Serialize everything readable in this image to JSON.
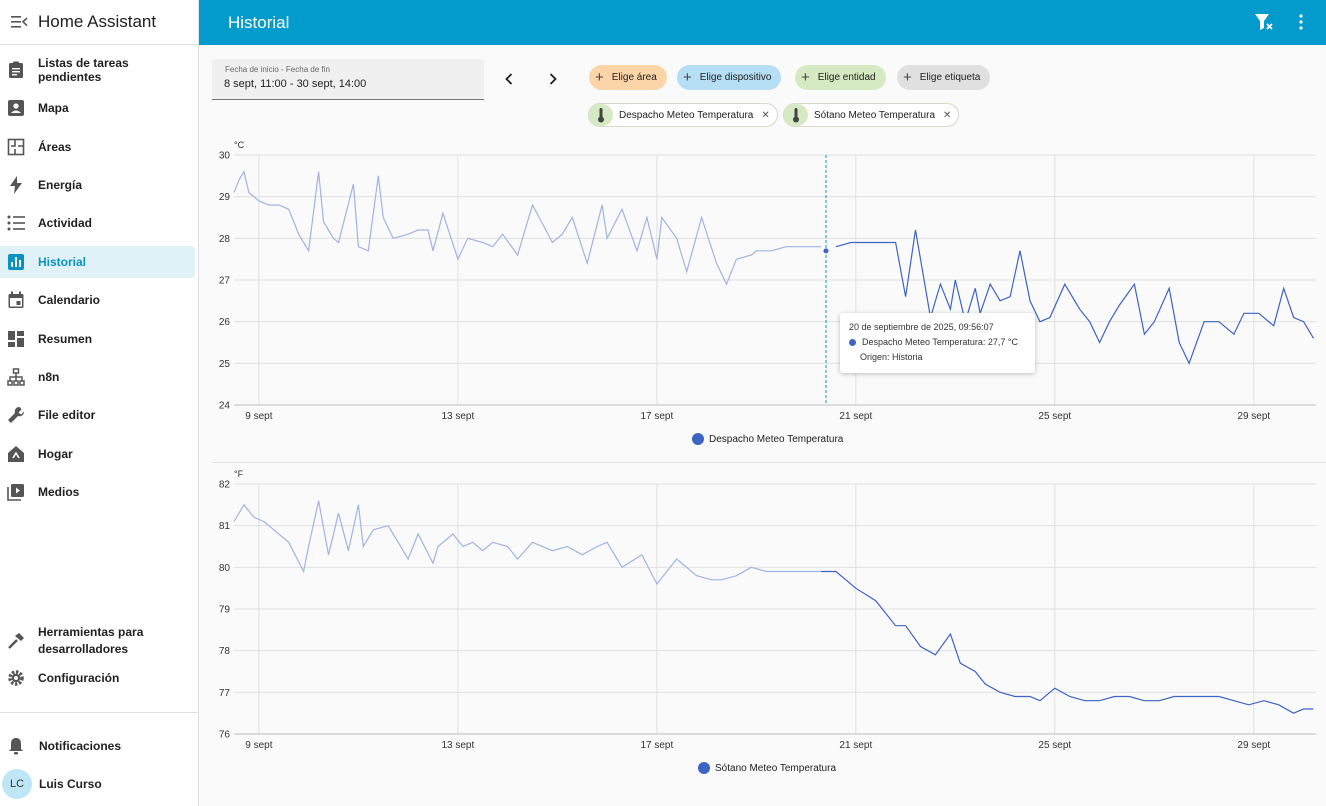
{
  "app": {
    "title": "Home Assistant"
  },
  "sidebar": {
    "items": [
      {
        "label": "Listas de tareas pendientes",
        "icon": "clipboard-list-icon"
      },
      {
        "label": "Mapa",
        "icon": "map-account-icon"
      },
      {
        "label": "Áreas",
        "icon": "floor-plan-icon"
      },
      {
        "label": "Energía",
        "icon": "lightning-bolt-icon"
      },
      {
        "label": "Actividad",
        "icon": "format-list-bulleted-icon"
      },
      {
        "label": "Historial",
        "icon": "chart-box-icon",
        "active": true
      },
      {
        "label": "Calendario",
        "icon": "calendar-icon"
      },
      {
        "label": "Resumen",
        "icon": "view-dashboard-icon"
      },
      {
        "label": "n8n",
        "icon": "sitemap-icon"
      },
      {
        "label": "File editor",
        "icon": "wrench-icon"
      },
      {
        "label": "Hogar",
        "icon": "home-automation-icon"
      },
      {
        "label": "Medios",
        "icon": "play-box-multiple-icon"
      }
    ],
    "dev_tools_line1": "Herramientas para",
    "dev_tools_line2": "desarrolladores",
    "settings": "Configuración",
    "notifications": "Notificaciones",
    "user": {
      "initials": "LC",
      "name": "Luis Curso"
    }
  },
  "header": {
    "title": "Historial"
  },
  "date_picker": {
    "label": "Fecha de inicio - Fecha de fin",
    "value": "8 sept, 11:00 - 30 sept, 14:00"
  },
  "filters": {
    "area": "Elige área",
    "device": "Elige dispositivo",
    "entity": "Elige entidad",
    "label": "Elige etiqueta"
  },
  "selected_entities": [
    {
      "name": "Despacho Meteo Temperatura"
    },
    {
      "name": "Sótano Meteo Temperatura"
    }
  ],
  "colors": {
    "accent": "#039bcc",
    "series": "#3d64c4",
    "series_faded": "#9fb4e4"
  },
  "tooltip": {
    "time": "20 de septiembre de 2025, 09:56:07",
    "series_line": "Despacho Meteo Temperatura: 27,7 °C",
    "source": "Origen: Historia"
  },
  "chart_data": [
    {
      "type": "line",
      "title": "",
      "unit": "°C",
      "ylim": [
        24,
        30
      ],
      "yticks": [
        "30",
        "29",
        "28",
        "27",
        "26",
        "25",
        "24"
      ],
      "xlabels": [
        "9 sept",
        "13 sept",
        "17 sept",
        "21 sept",
        "25 sept",
        "29 sept"
      ],
      "legend": "bottom",
      "series": [
        {
          "name": "Despacho Meteo Temperatura",
          "x": [
            8.5,
            8.6,
            8.7,
            8.8,
            9.0,
            9.2,
            9.4,
            9.6,
            9.8,
            10.0,
            10.2,
            10.3,
            10.5,
            10.6,
            10.9,
            11.0,
            11.2,
            11.4,
            11.5,
            11.7,
            12.0,
            12.2,
            12.4,
            12.5,
            12.7,
            13.0,
            13.2,
            13.5,
            13.7,
            13.9,
            14.2,
            14.5,
            14.9,
            15.1,
            15.3,
            15.6,
            15.9,
            16.0,
            16.3,
            16.6,
            16.8,
            17.0,
            17.1,
            17.4,
            17.6,
            17.9,
            18.2,
            18.4,
            18.6,
            18.9,
            19.0,
            19.3,
            19.6,
            20.0,
            20.3,
            20.6,
            20.9,
            21.2,
            21.5,
            21.8,
            22.0,
            22.2,
            22.3,
            22.5,
            22.7,
            22.9,
            23.0,
            23.2,
            23.4,
            23.5,
            23.7,
            23.9,
            24.1,
            24.3,
            24.5,
            24.7,
            24.9,
            25.2,
            25.5,
            25.7,
            25.9,
            26.1,
            26.3,
            26.6,
            26.8,
            27.0,
            27.3,
            27.5,
            27.7,
            28.0,
            28.3,
            28.6,
            28.8,
            29.1,
            29.4,
            29.6,
            29.8,
            30.0,
            30.2
          ],
          "y": [
            29.1,
            29.4,
            29.6,
            29.1,
            28.9,
            28.8,
            28.8,
            28.7,
            28.1,
            27.7,
            29.6,
            28.4,
            28.0,
            27.9,
            29.3,
            27.8,
            27.7,
            29.5,
            28.5,
            28.0,
            28.1,
            28.2,
            28.2,
            27.7,
            28.6,
            27.5,
            28.0,
            27.9,
            27.8,
            28.1,
            27.6,
            28.8,
            27.9,
            28.1,
            28.5,
            27.4,
            28.8,
            28.0,
            28.7,
            27.7,
            28.5,
            27.5,
            28.5,
            28.0,
            27.2,
            28.5,
            27.4,
            26.9,
            27.5,
            27.6,
            27.7,
            27.7,
            27.8,
            27.8,
            27.8,
            27.8,
            27.9,
            27.9,
            27.9,
            27.9,
            26.6,
            28.2,
            27.5,
            26.1,
            26.9,
            26.3,
            27.0,
            26.0,
            26.8,
            26.2,
            26.9,
            26.5,
            26.6,
            27.7,
            26.5,
            26.0,
            26.1,
            26.9,
            26.3,
            26.0,
            25.5,
            26.0,
            26.4,
            26.9,
            25.7,
            26.0,
            26.8,
            25.5,
            25.0,
            26.0,
            26.0,
            25.7,
            26.2,
            26.2,
            25.9,
            26.8,
            26.1,
            26.0,
            25.6
          ]
        }
      ]
    },
    {
      "type": "line",
      "title": "",
      "unit": "°F",
      "ylim": [
        76,
        82
      ],
      "yticks": [
        "82",
        "81",
        "80",
        "79",
        "78",
        "77",
        "76"
      ],
      "xlabels": [
        "9 sept",
        "13 sept",
        "17 sept",
        "21 sept",
        "25 sept",
        "29 sept"
      ],
      "legend": "bottom",
      "series": [
        {
          "name": "Sótano Meteo Temperatura",
          "x": [
            8.5,
            8.7,
            8.9,
            9.1,
            9.3,
            9.6,
            9.9,
            10.0,
            10.2,
            10.4,
            10.6,
            10.8,
            11.0,
            11.1,
            11.3,
            11.6,
            11.8,
            12.0,
            12.2,
            12.5,
            12.6,
            12.9,
            13.1,
            13.3,
            13.5,
            13.7,
            14.0,
            14.2,
            14.5,
            14.9,
            15.2,
            15.5,
            15.8,
            16.0,
            16.3,
            16.7,
            17.0,
            17.4,
            17.8,
            18.1,
            18.3,
            18.6,
            18.9,
            19.2,
            19.6,
            20.0,
            20.3,
            20.6,
            21.0,
            21.4,
            21.8,
            22.0,
            22.3,
            22.6,
            22.9,
            23.1,
            23.4,
            23.6,
            23.9,
            24.2,
            24.5,
            24.7,
            25.0,
            25.3,
            25.6,
            25.9,
            26.2,
            26.5,
            26.8,
            27.1,
            27.4,
            27.7,
            28.0,
            28.3,
            28.6,
            28.9,
            29.2,
            29.5,
            29.8,
            30.0,
            30.2
          ],
          "y": [
            81.1,
            81.5,
            81.2,
            81.1,
            80.9,
            80.6,
            79.9,
            80.5,
            81.6,
            80.3,
            81.3,
            80.4,
            81.5,
            80.5,
            80.9,
            81.0,
            80.6,
            80.2,
            80.8,
            80.1,
            80.5,
            80.8,
            80.5,
            80.6,
            80.4,
            80.6,
            80.5,
            80.2,
            80.6,
            80.4,
            80.5,
            80.3,
            80.5,
            80.6,
            80.0,
            80.3,
            79.6,
            80.2,
            79.8,
            79.7,
            79.7,
            79.8,
            80.0,
            79.9,
            79.9,
            79.9,
            79.9,
            79.9,
            79.5,
            79.2,
            78.6,
            78.6,
            78.1,
            77.9,
            78.4,
            77.7,
            77.5,
            77.2,
            77.0,
            76.9,
            76.9,
            76.8,
            77.1,
            76.9,
            76.8,
            76.8,
            76.9,
            76.9,
            76.8,
            76.8,
            76.9,
            76.9,
            76.9,
            76.9,
            76.8,
            76.7,
            76.8,
            76.7,
            76.5,
            76.6,
            76.6
          ]
        }
      ]
    }
  ]
}
